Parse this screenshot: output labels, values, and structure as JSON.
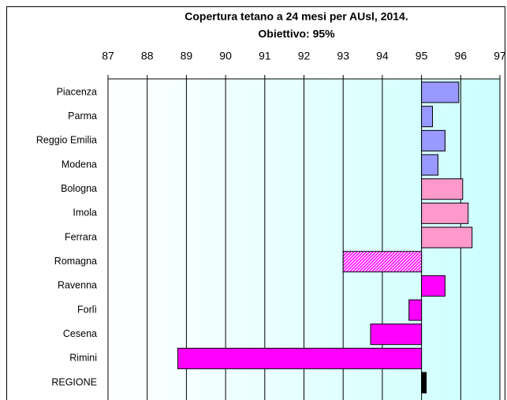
{
  "chart_data": {
    "type": "bar",
    "orientation": "horizontal",
    "title": "Copertura tetano a 24 mesi per AUsl, 2014.",
    "subtitle": "Obiettivo: 95%",
    "categories": [
      "Piacenza",
      "Parma",
      "Reggio Emilia",
      "Modena",
      "Bologna",
      "Imola",
      "Ferrara",
      "Romagna",
      "Ravenna",
      "Forlì",
      "Cesena",
      "Rimini",
      "REGIONE"
    ],
    "values": [
      95.95,
      95.28,
      95.6,
      95.42,
      96.05,
      96.19,
      96.29,
      93.0,
      95.6,
      94.68,
      93.7,
      88.78,
      95.12
    ],
    "colors": [
      "#9999ff",
      "#9999ff",
      "#9999ff",
      "#9999ff",
      "#ff99cc",
      "#ff99cc",
      "#ff99cc",
      "#ff00ff",
      "#ff00ff",
      "#ff00ff",
      "#ff00ff",
      "#ff00ff",
      "#000000"
    ],
    "patterns": [
      "solid",
      "solid",
      "solid",
      "solid",
      "solid",
      "solid",
      "solid",
      "hatch",
      "solid",
      "solid",
      "solid",
      "solid",
      "solid"
    ],
    "baseline": 95,
    "xlim": [
      87,
      97
    ],
    "xticks": [
      87,
      88,
      89,
      90,
      91,
      92,
      93,
      94,
      95,
      96,
      97
    ],
    "grid": true
  }
}
